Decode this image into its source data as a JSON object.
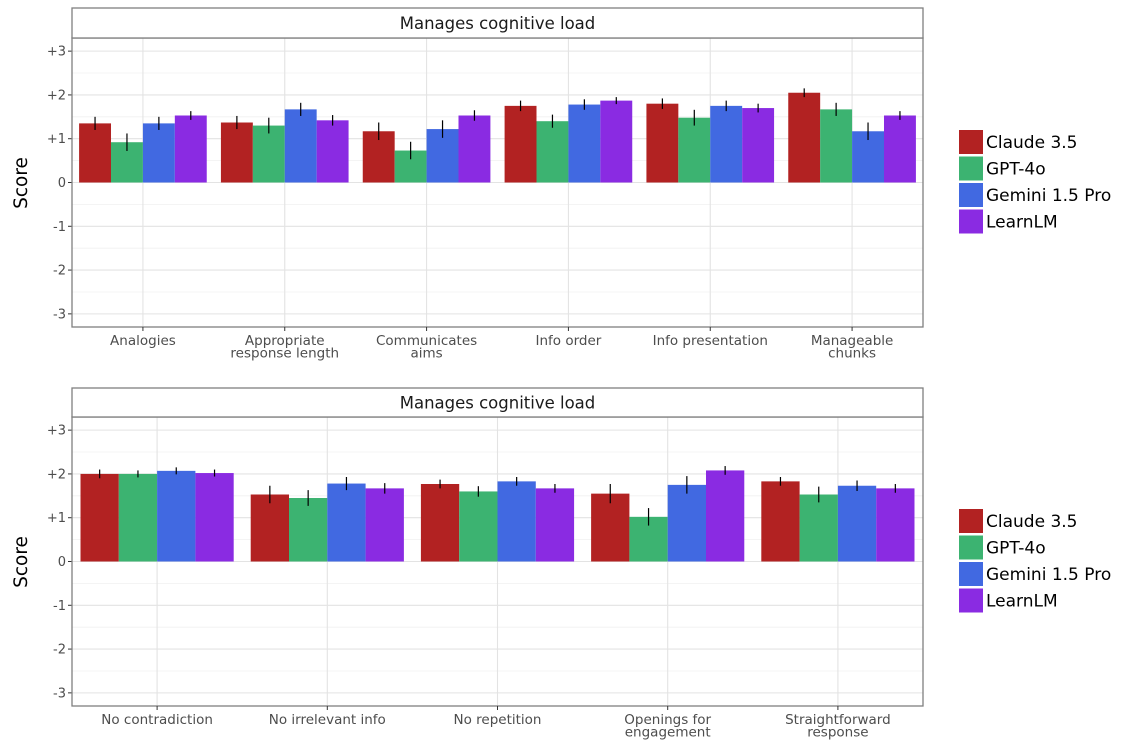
{
  "chart_data": [
    {
      "type": "bar",
      "title": "Manages cognitive load",
      "xlabel": "",
      "ylabel": "Score",
      "ylim": [
        -3.3,
        3.3
      ],
      "yticks": [
        "+3",
        "+2",
        "+1",
        "0",
        "-1",
        "-2",
        "-3"
      ],
      "categories": [
        [
          "Analogies"
        ],
        [
          "Appropriate",
          "response length"
        ],
        [
          "Communicates",
          "aims"
        ],
        [
          "Info order"
        ],
        [
          "Info presentation"
        ],
        [
          "Manageable",
          "chunks"
        ]
      ],
      "series": [
        {
          "name": "Claude 3.5",
          "color": "#b22222",
          "values": [
            1.35,
            1.37,
            1.17,
            1.75,
            1.8,
            2.05
          ],
          "err": [
            0.15,
            0.15,
            0.2,
            0.12,
            0.12,
            0.1
          ]
        },
        {
          "name": "GPT-4o",
          "color": "#3cb371",
          "values": [
            0.92,
            1.3,
            0.73,
            1.4,
            1.48,
            1.67
          ],
          "err": [
            0.2,
            0.18,
            0.2,
            0.15,
            0.18,
            0.15
          ]
        },
        {
          "name": "Gemini 1.5 Pro",
          "color": "#4169e1",
          "values": [
            1.35,
            1.67,
            1.22,
            1.78,
            1.75,
            1.17
          ],
          "err": [
            0.15,
            0.15,
            0.2,
            0.12,
            0.12,
            0.2
          ]
        },
        {
          "name": "LearnLM",
          "color": "#8a2be2",
          "values": [
            1.53,
            1.42,
            1.53,
            1.87,
            1.7,
            1.53
          ],
          "err": [
            0.1,
            0.12,
            0.12,
            0.08,
            0.1,
            0.1
          ]
        }
      ],
      "grid": true,
      "legend_position": "right"
    },
    {
      "type": "bar",
      "title": "Manages cognitive load",
      "xlabel": "",
      "ylabel": "Score",
      "ylim": [
        -3.3,
        3.3
      ],
      "yticks": [
        "+3",
        "+2",
        "+1",
        "0",
        "-1",
        "-2",
        "-3"
      ],
      "categories": [
        [
          "No contradiction"
        ],
        [
          "No irrelevant info"
        ],
        [
          "No repetition"
        ],
        [
          "Openings for",
          "engagement"
        ],
        [
          "Straightforward",
          "response"
        ]
      ],
      "series": [
        {
          "name": "Claude 3.5",
          "color": "#b22222",
          "values": [
            2.0,
            1.53,
            1.77,
            1.55,
            1.83
          ],
          "err": [
            0.1,
            0.2,
            0.1,
            0.22,
            0.1
          ]
        },
        {
          "name": "GPT-4o",
          "color": "#3cb371",
          "values": [
            2.0,
            1.45,
            1.6,
            1.02,
            1.53
          ],
          "err": [
            0.08,
            0.18,
            0.12,
            0.2,
            0.18
          ]
        },
        {
          "name": "Gemini 1.5 Pro",
          "color": "#4169e1",
          "values": [
            2.07,
            1.78,
            1.83,
            1.75,
            1.73
          ],
          "err": [
            0.08,
            0.15,
            0.1,
            0.2,
            0.12
          ]
        },
        {
          "name": "LearnLM",
          "color": "#8a2be2",
          "values": [
            2.02,
            1.67,
            1.67,
            2.08,
            1.67
          ],
          "err": [
            0.08,
            0.12,
            0.1,
            0.1,
            0.1
          ]
        }
      ],
      "grid": true,
      "legend_position": "right"
    }
  ]
}
